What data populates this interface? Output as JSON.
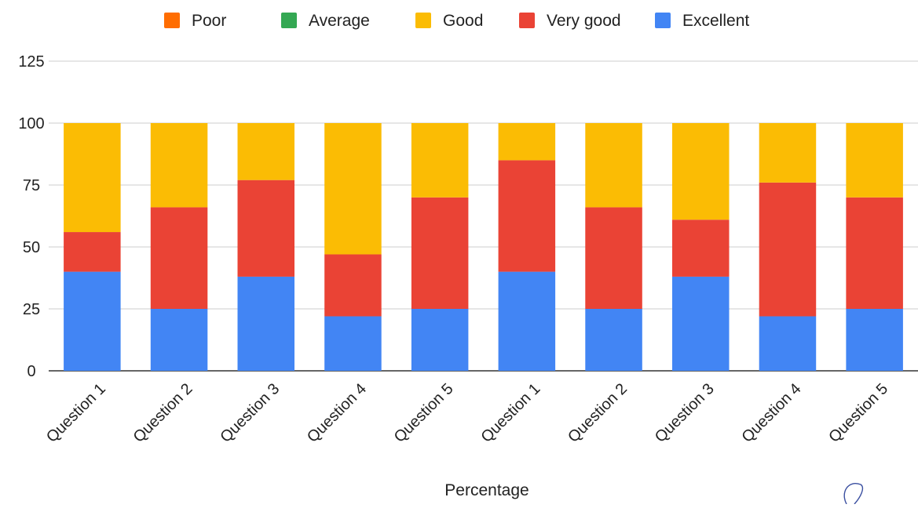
{
  "chart_data": {
    "type": "bar",
    "stacked": true,
    "title": "",
    "xlabel": "Percentage",
    "ylabel": "",
    "ylim": [
      0,
      125
    ],
    "yticks": [
      0,
      25,
      50,
      75,
      100,
      125
    ],
    "grid": true,
    "legend_position": "top",
    "categories": [
      "Question 1",
      "Question 2",
      "Question 3",
      "Question 4",
      "Question 5",
      "Question 1",
      "Question 2",
      "Question 3",
      "Question 4",
      "Question 5"
    ],
    "series": [
      {
        "name": "Excellent",
        "color": "#4285f4",
        "values": [
          40,
          25,
          38,
          22,
          25,
          40,
          25,
          38,
          22,
          25
        ]
      },
      {
        "name": "Very good",
        "color": "#ea4335",
        "values": [
          16,
          41,
          39,
          25,
          45,
          45,
          41,
          23,
          54,
          45
        ]
      },
      {
        "name": "Good",
        "color": "#fbbc04",
        "values": [
          44,
          34,
          23,
          53,
          30,
          15,
          34,
          39,
          24,
          30
        ]
      },
      {
        "name": "Average",
        "color": "#34a853",
        "values": [
          0,
          0,
          0,
          0,
          0,
          0,
          0,
          0,
          0,
          0
        ]
      },
      {
        "name": "Poor",
        "color": "#ff6d01",
        "values": [
          0,
          0,
          0,
          0,
          0,
          0,
          0,
          0,
          0,
          0
        ]
      }
    ],
    "legend_order": [
      "Poor",
      "Average",
      "Good",
      "Very good",
      "Excellent"
    ]
  }
}
